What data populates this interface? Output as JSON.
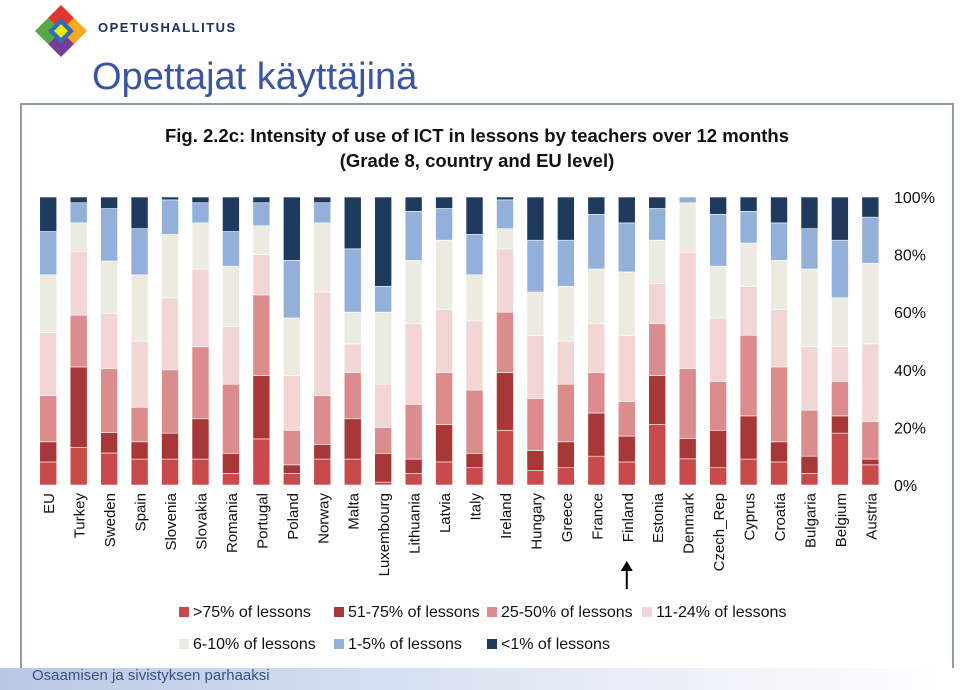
{
  "header": {
    "brand": "OPETUSHALLITUS",
    "slide_title": "Opettajat käyttäjinä"
  },
  "footer": {
    "text": "Osaamisen ja sivistyksen parhaaksi"
  },
  "colors": {
    "c75": "#c94a4a",
    "c51": "#a83838",
    "c25": "#dc8c8c",
    "c11": "#f2d6d6",
    "c6": "#ecebe2",
    "c1": "#93b0db",
    "c0": "#1f3a5f"
  },
  "chart_data": {
    "type": "bar",
    "stacked": true,
    "title_line1": "Fig. 2.2c: Intensity of use of ICT in lessons by teachers over 12 months",
    "title_line2": "(Grade 8, country and EU level)",
    "categories": [
      "EU",
      "Turkey",
      "Sweden",
      "Spain",
      "Slovenia",
      "Slovakia",
      "Romania",
      "Portugal",
      "Poland",
      "Norway",
      "Malta",
      "Luxembourg",
      "Lithuania",
      "Latvia",
      "Italy",
      "Ireland",
      "Hungary",
      "Greece",
      "France",
      "Finland",
      "Estonia",
      "Denmark",
      "Czech_Rep",
      "Cyprus",
      "Croatia",
      "Bulgaria",
      "Belgium",
      "Austria"
    ],
    "ylim": [
      0,
      100
    ],
    "yticks": [
      "0%",
      "20%",
      "40%",
      "60%",
      "80%",
      "100%"
    ],
    "highlight": "Finland",
    "series": [
      {
        "name": ">75% of lessons",
        "color_key": "c75",
        "values": [
          8,
          13,
          11,
          9,
          9,
          9,
          4,
          16,
          4,
          9,
          9,
          1,
          4,
          8,
          6,
          19,
          5,
          6,
          10,
          8,
          21,
          9,
          6,
          9,
          8,
          4,
          18,
          7
        ]
      },
      {
        "name": "51-75% of lessons",
        "color_key": "c51",
        "values": [
          7,
          28,
          7,
          6,
          9,
          14,
          7,
          22,
          3,
          5,
          14,
          10,
          5,
          13,
          5,
          20,
          7,
          9,
          15,
          9,
          17,
          7,
          13,
          15,
          7,
          6,
          6,
          2
        ]
      },
      {
        "name": "25-50% of lessons",
        "color_key": "c25",
        "values": [
          16,
          18,
          22,
          12,
          22,
          25,
          24,
          28,
          12,
          17,
          16,
          9,
          19,
          18,
          22,
          21,
          18,
          20,
          14,
          12,
          18,
          24,
          17,
          28,
          26,
          16,
          12,
          13
        ]
      },
      {
        "name": "11-24% of lessons",
        "color_key": "c11",
        "values": [
          22,
          22,
          19,
          23,
          25,
          27,
          20,
          14,
          19,
          36,
          10,
          15,
          28,
          22,
          24,
          22,
          22,
          15,
          17,
          23,
          14,
          40,
          22,
          17,
          20,
          22,
          12,
          27
        ]
      },
      {
        "name": "6-10% of lessons",
        "color_key": "c6",
        "values": [
          20,
          10,
          18,
          23,
          22,
          16,
          21,
          10,
          20,
          24,
          11,
          25,
          22,
          24,
          16,
          7,
          15,
          19,
          19,
          22,
          15,
          17,
          18,
          15,
          17,
          27,
          17,
          28
        ]
      },
      {
        "name": "1-5% of lessons",
        "color_key": "c1",
        "values": [
          15,
          7,
          18,
          16,
          12,
          7,
          12,
          8,
          20,
          7,
          22,
          9,
          17,
          11,
          14,
          10,
          18,
          16,
          19,
          17,
          11,
          2,
          18,
          11,
          13,
          14,
          20,
          16
        ]
      },
      {
        "name": "<1% of lessons",
        "color_key": "c0",
        "values": [
          12,
          2,
          4,
          11,
          1,
          2,
          12,
          2,
          22,
          2,
          18,
          31,
          5,
          4,
          13,
          1,
          15,
          15,
          6,
          9,
          4,
          0,
          6,
          5,
          9,
          11,
          15,
          7
        ]
      }
    ]
  }
}
